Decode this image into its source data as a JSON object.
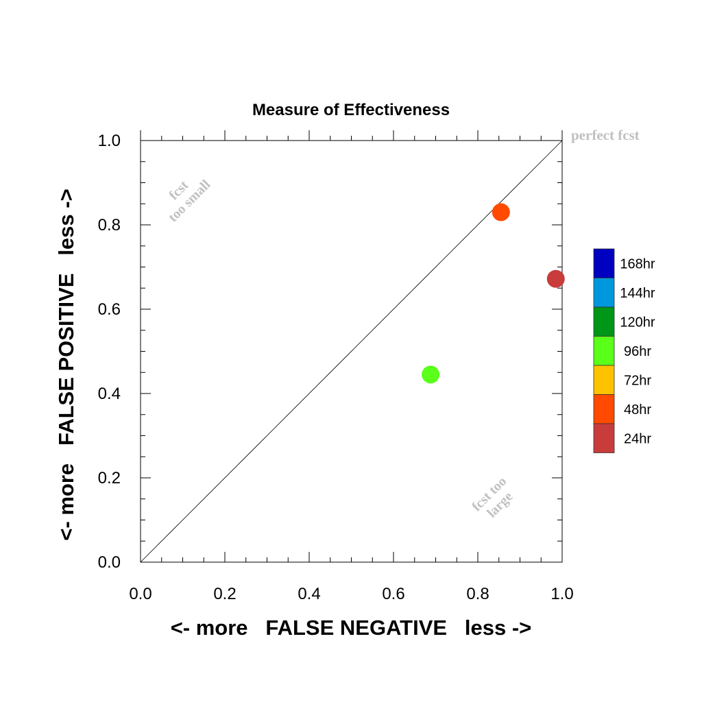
{
  "chart_data": {
    "type": "scatter",
    "title": "Measure of Effectiveness",
    "xlabel": "<- more   FALSE NEGATIVE   less ->",
    "ylabel": "<- more   FALSE POSITIVE   less ->",
    "xlim": [
      0.0,
      1.0
    ],
    "ylim": [
      0.0,
      1.0
    ],
    "x_ticks": [
      "0.0",
      "0.2",
      "0.4",
      "0.6",
      "0.8",
      "1.0"
    ],
    "y_ticks": [
      "0.0",
      "0.2",
      "0.4",
      "0.6",
      "0.8",
      "1.0"
    ],
    "reference_line": {
      "from": [
        0,
        0
      ],
      "to": [
        1,
        1
      ]
    },
    "annotations": {
      "perfect": "perfect fcst",
      "too_small_line1": "fcst",
      "too_small_line2": "too small",
      "too_large_line1": "fcst too",
      "too_large_line2": "large"
    },
    "legend": {
      "placement": "right",
      "entries": [
        {
          "label": "168hr",
          "color": "#0000c0"
        },
        {
          "label": "144hr",
          "color": "#0098dc"
        },
        {
          "label": "120hr",
          "color": "#009618"
        },
        {
          "label": "96hr",
          "color": "#5aff1a"
        },
        {
          "label": "72hr",
          "color": "#ffc200"
        },
        {
          "label": "48hr",
          "color": "#ff4a00"
        },
        {
          "label": "24hr",
          "color": "#c83c3c"
        }
      ]
    },
    "points": [
      {
        "lead": "24hr",
        "x": 0.985,
        "y": 0.672,
        "color": "#c83c3c"
      },
      {
        "lead": "48hr",
        "x": 0.855,
        "y": 0.83,
        "color": "#ff4a00"
      },
      {
        "lead": "96hr",
        "x": 0.688,
        "y": 0.445,
        "color": "#5aff1a"
      }
    ]
  }
}
